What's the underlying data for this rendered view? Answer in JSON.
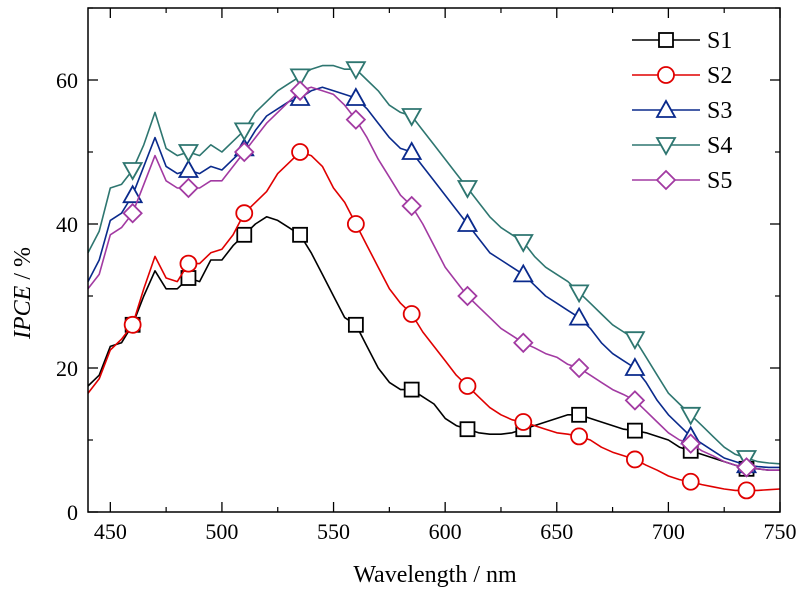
{
  "chart_data": {
    "type": "line",
    "xlabel": "Wavelength / nm",
    "ylabel_italic": "IPCE",
    "ylabel_suffix": " / %",
    "xlim": [
      440,
      750
    ],
    "ylim": [
      0,
      70
    ],
    "xticks": [
      450,
      500,
      550,
      600,
      650,
      700,
      750
    ],
    "yticks": [
      0,
      20,
      40,
      60
    ],
    "grid": false,
    "legend_position": "top-right",
    "marker_x": [
      460,
      485,
      510,
      535,
      560,
      585,
      610,
      635,
      660,
      685,
      710,
      735
    ],
    "series": [
      {
        "name": "S1",
        "color": "#000000",
        "marker": "square",
        "curve": [
          [
            440,
            17.5
          ],
          [
            445,
            19
          ],
          [
            450,
            23
          ],
          [
            455,
            23.5
          ],
          [
            460,
            26
          ],
          [
            465,
            30
          ],
          [
            470,
            33.5
          ],
          [
            475,
            31
          ],
          [
            480,
            31
          ],
          [
            485,
            32.5
          ],
          [
            490,
            32
          ],
          [
            495,
            35
          ],
          [
            500,
            35
          ],
          [
            505,
            37
          ],
          [
            510,
            38.5
          ],
          [
            515,
            40
          ],
          [
            520,
            41
          ],
          [
            525,
            40.5
          ],
          [
            530,
            39.5
          ],
          [
            535,
            38.5
          ],
          [
            540,
            36
          ],
          [
            545,
            33
          ],
          [
            550,
            30
          ],
          [
            555,
            27
          ],
          [
            560,
            26
          ],
          [
            565,
            23
          ],
          [
            570,
            20
          ],
          [
            575,
            18
          ],
          [
            580,
            17
          ],
          [
            585,
            17
          ],
          [
            590,
            16
          ],
          [
            595,
            15
          ],
          [
            600,
            13
          ],
          [
            605,
            12
          ],
          [
            610,
            11.5
          ],
          [
            615,
            11
          ],
          [
            620,
            10.8
          ],
          [
            625,
            10.8
          ],
          [
            630,
            11
          ],
          [
            635,
            11.5
          ],
          [
            640,
            12
          ],
          [
            645,
            12.5
          ],
          [
            650,
            13
          ],
          [
            655,
            13.5
          ],
          [
            660,
            13.5
          ],
          [
            665,
            13
          ],
          [
            670,
            12.5
          ],
          [
            675,
            12
          ],
          [
            680,
            11.5
          ],
          [
            685,
            11.3
          ],
          [
            690,
            11
          ],
          [
            695,
            10.5
          ],
          [
            700,
            10
          ],
          [
            705,
            9
          ],
          [
            710,
            8.5
          ],
          [
            715,
            8
          ],
          [
            720,
            7.5
          ],
          [
            725,
            7
          ],
          [
            730,
            6.5
          ],
          [
            735,
            6
          ],
          [
            740,
            6
          ],
          [
            745,
            5.8
          ],
          [
            750,
            5.8
          ]
        ]
      },
      {
        "name": "S2",
        "color": "#e00000",
        "marker": "circle",
        "curve": [
          [
            440,
            16.5
          ],
          [
            445,
            18.5
          ],
          [
            450,
            22.5
          ],
          [
            455,
            24
          ],
          [
            460,
            26
          ],
          [
            465,
            31
          ],
          [
            470,
            35.5
          ],
          [
            475,
            32.5
          ],
          [
            480,
            32
          ],
          [
            485,
            34.5
          ],
          [
            490,
            34.5
          ],
          [
            495,
            36
          ],
          [
            500,
            36.5
          ],
          [
            505,
            38.5
          ],
          [
            510,
            41.5
          ],
          [
            515,
            43
          ],
          [
            520,
            44.5
          ],
          [
            525,
            47
          ],
          [
            530,
            48.5
          ],
          [
            535,
            50
          ],
          [
            540,
            49.5
          ],
          [
            545,
            48
          ],
          [
            550,
            45
          ],
          [
            555,
            43
          ],
          [
            560,
            40
          ],
          [
            565,
            37
          ],
          [
            570,
            34
          ],
          [
            575,
            31
          ],
          [
            580,
            29
          ],
          [
            585,
            27.5
          ],
          [
            590,
            25
          ],
          [
            595,
            23
          ],
          [
            600,
            21
          ],
          [
            605,
            19
          ],
          [
            610,
            17.5
          ],
          [
            615,
            16
          ],
          [
            620,
            14.5
          ],
          [
            625,
            13.5
          ],
          [
            630,
            12.8
          ],
          [
            635,
            12.5
          ],
          [
            640,
            12
          ],
          [
            645,
            11.5
          ],
          [
            650,
            11
          ],
          [
            655,
            10.8
          ],
          [
            660,
            10.5
          ],
          [
            665,
            10
          ],
          [
            670,
            9
          ],
          [
            675,
            8.3
          ],
          [
            680,
            7.8
          ],
          [
            685,
            7.3
          ],
          [
            690,
            6.5
          ],
          [
            695,
            5.8
          ],
          [
            700,
            5
          ],
          [
            705,
            4.5
          ],
          [
            710,
            4.2
          ],
          [
            715,
            3.8
          ],
          [
            720,
            3.5
          ],
          [
            725,
            3.2
          ],
          [
            730,
            3
          ],
          [
            735,
            3
          ],
          [
            740,
            3
          ],
          [
            745,
            3.1
          ],
          [
            750,
            3.2
          ]
        ]
      },
      {
        "name": "S3",
        "color": "#0a2a8c",
        "marker": "triangle-up",
        "curve": [
          [
            440,
            32
          ],
          [
            445,
            35
          ],
          [
            450,
            40.5
          ],
          [
            455,
            41.5
          ],
          [
            460,
            44
          ],
          [
            465,
            48
          ],
          [
            470,
            52
          ],
          [
            475,
            48
          ],
          [
            480,
            47
          ],
          [
            485,
            47.5
          ],
          [
            490,
            47
          ],
          [
            495,
            48
          ],
          [
            500,
            47.5
          ],
          [
            505,
            49
          ],
          [
            510,
            50.5
          ],
          [
            515,
            53
          ],
          [
            520,
            55
          ],
          [
            525,
            56
          ],
          [
            530,
            57
          ],
          [
            535,
            57.5
          ],
          [
            540,
            58.5
          ],
          [
            545,
            59
          ],
          [
            550,
            58.5
          ],
          [
            555,
            58
          ],
          [
            560,
            57.5
          ],
          [
            565,
            56
          ],
          [
            570,
            54
          ],
          [
            575,
            52
          ],
          [
            580,
            50.5
          ],
          [
            585,
            50
          ],
          [
            590,
            48
          ],
          [
            595,
            46
          ],
          [
            600,
            44
          ],
          [
            605,
            42
          ],
          [
            610,
            40
          ],
          [
            615,
            38
          ],
          [
            620,
            36
          ],
          [
            625,
            35
          ],
          [
            630,
            34
          ],
          [
            635,
            33
          ],
          [
            640,
            31.5
          ],
          [
            645,
            30
          ],
          [
            650,
            29
          ],
          [
            655,
            28
          ],
          [
            660,
            27
          ],
          [
            665,
            25.5
          ],
          [
            670,
            23.5
          ],
          [
            675,
            22
          ],
          [
            680,
            21
          ],
          [
            685,
            20
          ],
          [
            690,
            18
          ],
          [
            695,
            15.5
          ],
          [
            700,
            13.5
          ],
          [
            705,
            12
          ],
          [
            710,
            10.5
          ],
          [
            715,
            9.5
          ],
          [
            720,
            8.5
          ],
          [
            725,
            7.5
          ],
          [
            730,
            7
          ],
          [
            735,
            6.5
          ],
          [
            740,
            6.3
          ],
          [
            745,
            6.2
          ],
          [
            750,
            6.2
          ]
        ]
      },
      {
        "name": "S4",
        "color": "#2e7670",
        "marker": "triangle-down",
        "curve": [
          [
            440,
            36
          ],
          [
            445,
            39
          ],
          [
            450,
            45
          ],
          [
            455,
            45.5
          ],
          [
            460,
            47.5
          ],
          [
            465,
            51
          ],
          [
            470,
            55.5
          ],
          [
            475,
            50.5
          ],
          [
            480,
            49.5
          ],
          [
            485,
            50
          ],
          [
            490,
            49.5
          ],
          [
            495,
            51
          ],
          [
            500,
            50
          ],
          [
            505,
            51.5
          ],
          [
            510,
            53
          ],
          [
            515,
            55.5
          ],
          [
            520,
            57
          ],
          [
            525,
            58.5
          ],
          [
            530,
            59.5
          ],
          [
            535,
            60.5
          ],
          [
            540,
            61.5
          ],
          [
            545,
            62
          ],
          [
            550,
            62
          ],
          [
            555,
            61.5
          ],
          [
            560,
            61.5
          ],
          [
            565,
            60
          ],
          [
            570,
            58.5
          ],
          [
            575,
            56.5
          ],
          [
            580,
            55.5
          ],
          [
            585,
            55
          ],
          [
            590,
            53
          ],
          [
            595,
            51
          ],
          [
            600,
            49
          ],
          [
            605,
            47
          ],
          [
            610,
            45
          ],
          [
            615,
            43
          ],
          [
            620,
            41
          ],
          [
            625,
            39.5
          ],
          [
            630,
            38.5
          ],
          [
            635,
            37.5
          ],
          [
            640,
            35.5
          ],
          [
            645,
            34
          ],
          [
            650,
            33
          ],
          [
            655,
            32
          ],
          [
            660,
            30.5
          ],
          [
            665,
            29
          ],
          [
            670,
            27.5
          ],
          [
            675,
            26
          ],
          [
            680,
            25
          ],
          [
            685,
            24
          ],
          [
            690,
            21.5
          ],
          [
            695,
            19
          ],
          [
            700,
            16.5
          ],
          [
            705,
            15
          ],
          [
            710,
            13.5
          ],
          [
            715,
            12
          ],
          [
            720,
            10.5
          ],
          [
            725,
            9
          ],
          [
            730,
            8
          ],
          [
            735,
            7.5
          ],
          [
            740,
            7
          ],
          [
            745,
            6.8
          ],
          [
            750,
            6.7
          ]
        ]
      },
      {
        "name": "S5",
        "color": "#a23aa2",
        "marker": "diamond",
        "curve": [
          [
            440,
            31
          ],
          [
            445,
            33
          ],
          [
            450,
            38.5
          ],
          [
            455,
            39.5
          ],
          [
            460,
            41.5
          ],
          [
            465,
            45.5
          ],
          [
            470,
            49.5
          ],
          [
            475,
            46
          ],
          [
            480,
            45
          ],
          [
            485,
            45
          ],
          [
            490,
            45
          ],
          [
            495,
            46
          ],
          [
            500,
            46
          ],
          [
            505,
            48
          ],
          [
            510,
            50
          ],
          [
            515,
            52
          ],
          [
            520,
            54
          ],
          [
            525,
            55.5
          ],
          [
            530,
            57
          ],
          [
            535,
            58.5
          ],
          [
            540,
            59
          ],
          [
            545,
            58.5
          ],
          [
            550,
            58
          ],
          [
            555,
            56.5
          ],
          [
            560,
            54.5
          ],
          [
            565,
            52
          ],
          [
            570,
            49
          ],
          [
            575,
            46.5
          ],
          [
            580,
            44
          ],
          [
            585,
            42.5
          ],
          [
            590,
            40
          ],
          [
            595,
            37
          ],
          [
            600,
            34
          ],
          [
            605,
            32
          ],
          [
            610,
            30
          ],
          [
            615,
            28.5
          ],
          [
            620,
            27
          ],
          [
            625,
            25.5
          ],
          [
            630,
            24.5
          ],
          [
            635,
            23.5
          ],
          [
            640,
            22.8
          ],
          [
            645,
            22
          ],
          [
            650,
            21.5
          ],
          [
            655,
            20.5
          ],
          [
            660,
            20
          ],
          [
            665,
            19
          ],
          [
            670,
            18
          ],
          [
            675,
            17
          ],
          [
            680,
            16.3
          ],
          [
            685,
            15.5
          ],
          [
            690,
            14
          ],
          [
            695,
            12.5
          ],
          [
            700,
            11
          ],
          [
            705,
            10
          ],
          [
            710,
            9.5
          ],
          [
            715,
            8.5
          ],
          [
            720,
            7.8
          ],
          [
            725,
            7
          ],
          [
            730,
            6.5
          ],
          [
            735,
            6.2
          ],
          [
            740,
            6
          ],
          [
            745,
            5.8
          ],
          [
            750,
            5.8
          ]
        ]
      }
    ]
  }
}
